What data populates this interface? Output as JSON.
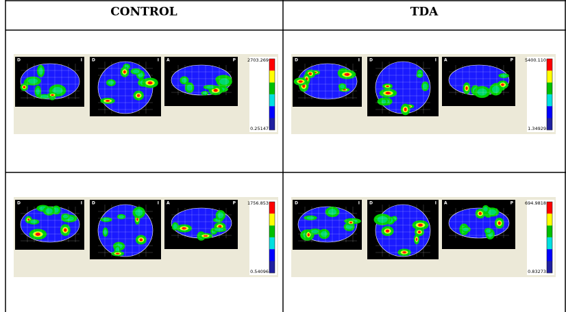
{
  "table": {
    "header": [
      "CONTROL",
      "TDA"
    ],
    "rows": [
      [
        {
          "views": [
            [
              "D",
              "I"
            ],
            [
              "D",
              "I"
            ],
            [
              "A",
              "P"
            ]
          ],
          "scale_max": "2703.269",
          "scale_min": "0.25147"
        },
        {
          "views": [
            [
              "D",
              "I"
            ],
            [
              "D",
              "I"
            ],
            [
              "A",
              "P"
            ]
          ],
          "scale_max": "5400.110",
          "scale_min": "1.34929"
        }
      ],
      [
        {
          "views": [
            [
              "D",
              "I"
            ],
            [
              "D",
              "I"
            ],
            [
              "A",
              "P"
            ]
          ],
          "scale_max": "1756.853",
          "scale_min": "0.54096"
        },
        {
          "views": [
            [
              "D",
              "I"
            ],
            [
              "D",
              "I"
            ],
            [
              "A",
              "P"
            ]
          ],
          "scale_max": "694.9818",
          "scale_min": "0.83273"
        }
      ]
    ]
  }
}
